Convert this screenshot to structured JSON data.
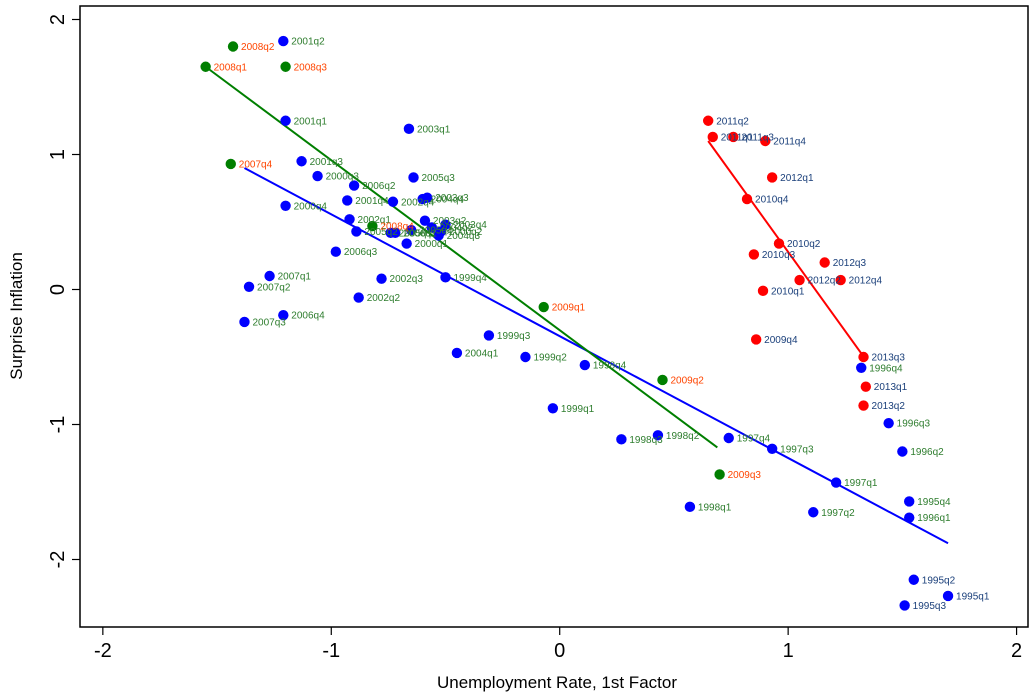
{
  "chart_data": {
    "type": "scatter",
    "title": "",
    "xlabel": "Unemployment Rate, 1st Factor",
    "ylabel": "Surprise Inflation",
    "xlim": [
      -2.1,
      2.05
    ],
    "ylim": [
      -2.5,
      2.1
    ],
    "xticks": [
      -2,
      -1,
      0,
      1,
      2
    ],
    "yticks": [
      -2,
      -1,
      0,
      1,
      2
    ],
    "grid": false,
    "legend": "none",
    "colors": {
      "blue_marker": "#0000ff",
      "blue_label": "#1a3f7a",
      "green_marker": "#007f00",
      "green_label": "#2e7d2e",
      "orange_label": "#ff4500",
      "red_marker": "#ff0000"
    },
    "series": [
      {
        "group": "blue",
        "marker_color": "#0000ff",
        "points": [
          {
            "label": "1995q1",
            "x": 1.7,
            "y": -2.27,
            "label_color": "#1a3f7a"
          },
          {
            "label": "1995q2",
            "x": 1.55,
            "y": -2.15,
            "label_color": "#1a3f7a"
          },
          {
            "label": "1995q3",
            "x": 1.51,
            "y": -2.34,
            "label_color": "#1a3f7a"
          },
          {
            "label": "1995q4",
            "x": 1.53,
            "y": -1.57,
            "label_color": "#2e7d2e"
          },
          {
            "label": "1996q1",
            "x": 1.53,
            "y": -1.69,
            "label_color": "#2e7d2e"
          },
          {
            "label": "1996q2",
            "x": 1.5,
            "y": -1.2,
            "label_color": "#2e7d2e"
          },
          {
            "label": "1996q3",
            "x": 1.44,
            "y": -0.99,
            "label_color": "#2e7d2e"
          },
          {
            "label": "1996q4",
            "x": 1.32,
            "y": -0.58,
            "label_color": "#2e7d2e"
          },
          {
            "label": "1997q1",
            "x": 1.21,
            "y": -1.43,
            "label_color": "#2e7d2e"
          },
          {
            "label": "1997q2",
            "x": 1.11,
            "y": -1.65,
            "label_color": "#2e7d2e"
          },
          {
            "label": "1997q3",
            "x": 0.93,
            "y": -1.18,
            "label_color": "#2e7d2e"
          },
          {
            "label": "1997q4",
            "x": 0.74,
            "y": -1.1,
            "label_color": "#2e7d2e"
          },
          {
            "label": "1998q1",
            "x": 0.57,
            "y": -1.61,
            "label_color": "#2e7d2e"
          },
          {
            "label": "1998q2",
            "x": 0.43,
            "y": -1.08,
            "label_color": "#2e7d2e"
          },
          {
            "label": "1998q3",
            "x": 0.27,
            "y": -1.11,
            "label_color": "#2e7d2e"
          },
          {
            "label": "1998q4",
            "x": 0.11,
            "y": -0.56,
            "label_color": "#2e7d2e"
          },
          {
            "label": "1999q1",
            "x": -0.03,
            "y": -0.88,
            "label_color": "#2e7d2e"
          },
          {
            "label": "1999q2",
            "x": -0.15,
            "y": -0.5,
            "label_color": "#2e7d2e"
          },
          {
            "label": "1999q3",
            "x": -0.31,
            "y": -0.34,
            "label_color": "#2e7d2e"
          },
          {
            "label": "1999q4",
            "x": -0.5,
            "y": 0.09,
            "label_color": "#2e7d2e"
          },
          {
            "label": "2000q1",
            "x": -0.67,
            "y": 0.34,
            "label_color": "#2e7d2e"
          },
          {
            "label": "2000q2",
            "x": -0.52,
            "y": 0.43,
            "label_color": "#2e7d2e"
          },
          {
            "label": "2000q3",
            "x": -1.06,
            "y": 0.84,
            "label_color": "#2e7d2e"
          },
          {
            "label": "2000q4",
            "x": -1.2,
            "y": 0.62,
            "label_color": "#2e7d2e"
          },
          {
            "label": "2001q1",
            "x": -1.2,
            "y": 1.25,
            "label_color": "#2e7d2e"
          },
          {
            "label": "2001q2",
            "x": -1.21,
            "y": 1.84,
            "label_color": "#2e7d2e"
          },
          {
            "label": "2001q3",
            "x": -1.13,
            "y": 0.95,
            "label_color": "#2e7d2e"
          },
          {
            "label": "2001q4",
            "x": -0.93,
            "y": 0.66,
            "label_color": "#2e7d2e"
          },
          {
            "label": "2002q1",
            "x": -0.92,
            "y": 0.52,
            "label_color": "#2e7d2e"
          },
          {
            "label": "2002q2",
            "x": -0.88,
            "y": -0.06,
            "label_color": "#2e7d2e"
          },
          {
            "label": "2002q3",
            "x": -0.78,
            "y": 0.08,
            "label_color": "#2e7d2e"
          },
          {
            "label": "2002q4",
            "x": -0.73,
            "y": 0.65,
            "label_color": "#2e7d2e"
          },
          {
            "label": "2003q1",
            "x": -0.66,
            "y": 1.19,
            "label_color": "#2e7d2e"
          },
          {
            "label": "2003q2",
            "x": -0.59,
            "y": 0.51,
            "label_color": "#2e7d2e"
          },
          {
            "label": "2003q3",
            "x": -0.58,
            "y": 0.68,
            "label_color": "#2e7d2e"
          },
          {
            "label": "2003q4",
            "x": -0.5,
            "y": 0.48,
            "label_color": "#2e7d2e"
          },
          {
            "label": "2004q1",
            "x": -0.45,
            "y": -0.47,
            "label_color": "#2e7d2e"
          },
          {
            "label": "2004q2",
            "x": -0.56,
            "y": 0.46,
            "label_color": "#2e7d2e"
          },
          {
            "label": "2004q3",
            "x": -0.53,
            "y": 0.4,
            "label_color": "#2e7d2e"
          },
          {
            "label": "2004q4",
            "x": -0.6,
            "y": 0.67,
            "label_color": "#2e7d2e"
          },
          {
            "label": "2005q1",
            "x": -0.74,
            "y": 0.42,
            "label_color": "#2e7d2e"
          },
          {
            "label": "2005q2",
            "x": -0.89,
            "y": 0.43,
            "label_color": "#2e7d2e"
          },
          {
            "label": "2005q3",
            "x": -0.64,
            "y": 0.83,
            "label_color": "#2e7d2e"
          },
          {
            "label": "2005q4",
            "x": -0.65,
            "y": 0.44,
            "label_color": "#2e7d2e"
          },
          {
            "label": "2006q1",
            "x": -0.72,
            "y": 0.42,
            "label_color": "#2e7d2e"
          },
          {
            "label": "2006q2",
            "x": -0.9,
            "y": 0.77,
            "label_color": "#2e7d2e"
          },
          {
            "label": "2006q3",
            "x": -0.98,
            "y": 0.28,
            "label_color": "#2e7d2e"
          },
          {
            "label": "2006q4",
            "x": -1.21,
            "y": -0.19,
            "label_color": "#2e7d2e"
          },
          {
            "label": "2007q1",
            "x": -1.27,
            "y": 0.1,
            "label_color": "#2e7d2e"
          },
          {
            "label": "2007q2",
            "x": -1.36,
            "y": 0.02,
            "label_color": "#2e7d2e"
          },
          {
            "label": "2007q3",
            "x": -1.38,
            "y": -0.24,
            "label_color": "#2e7d2e"
          }
        ]
      },
      {
        "group": "green",
        "marker_color": "#007f00",
        "points": [
          {
            "label": "2007q4",
            "x": -1.44,
            "y": 0.93,
            "label_color": "#ff4500"
          },
          {
            "label": "2008q1",
            "x": -1.55,
            "y": 1.65,
            "label_color": "#ff4500"
          },
          {
            "label": "2008q2",
            "x": -1.43,
            "y": 1.8,
            "label_color": "#ff4500"
          },
          {
            "label": "2008q3",
            "x": -1.2,
            "y": 1.65,
            "label_color": "#ff4500"
          },
          {
            "label": "2008q4",
            "x": -0.82,
            "y": 0.47,
            "label_color": "#ff4500"
          },
          {
            "label": "2009q1",
            "x": -0.07,
            "y": -0.13,
            "label_color": "#ff4500"
          },
          {
            "label": "2009q2",
            "x": 0.45,
            "y": -0.67,
            "label_color": "#ff4500"
          },
          {
            "label": "2009q3",
            "x": 0.7,
            "y": -1.37,
            "label_color": "#ff4500"
          }
        ]
      },
      {
        "group": "red",
        "marker_color": "#ff0000",
        "points": [
          {
            "label": "2009q4",
            "x": 0.86,
            "y": -0.37,
            "label_color": "#1a3f7a"
          },
          {
            "label": "2010q1",
            "x": 0.89,
            "y": -0.01,
            "label_color": "#1a3f7a"
          },
          {
            "label": "2010q2",
            "x": 0.96,
            "y": 0.34,
            "label_color": "#1a3f7a"
          },
          {
            "label": "2010q3",
            "x": 0.85,
            "y": 0.26,
            "label_color": "#1a3f7a"
          },
          {
            "label": "2010q4",
            "x": 0.82,
            "y": 0.67,
            "label_color": "#1a3f7a"
          },
          {
            "label": "2011q1",
            "x": 0.67,
            "y": 1.13,
            "label_color": "#1a3f7a"
          },
          {
            "label": "2011q2",
            "x": 0.65,
            "y": 1.25,
            "label_color": "#1a3f7a"
          },
          {
            "label": "2011q3",
            "x": 0.76,
            "y": 1.13,
            "label_color": "#1a3f7a"
          },
          {
            "label": "2011q4",
            "x": 0.9,
            "y": 1.1,
            "label_color": "#1a3f7a"
          },
          {
            "label": "2012q1",
            "x": 0.93,
            "y": 0.83,
            "label_color": "#1a3f7a"
          },
          {
            "label": "2012q2",
            "x": 1.05,
            "y": 0.07,
            "label_color": "#1a3f7a"
          },
          {
            "label": "2012q3",
            "x": 1.16,
            "y": 0.2,
            "label_color": "#1a3f7a"
          },
          {
            "label": "2012q4",
            "x": 1.23,
            "y": 0.07,
            "label_color": "#1a3f7a"
          },
          {
            "label": "2013q1",
            "x": 1.34,
            "y": -0.72,
            "label_color": "#1a3f7a"
          },
          {
            "label": "2013q2",
            "x": 1.33,
            "y": -0.86,
            "label_color": "#1a3f7a"
          },
          {
            "label": "2013q3",
            "x": 1.33,
            "y": -0.5,
            "label_color": "#1a3f7a"
          }
        ]
      }
    ],
    "fit_lines": [
      {
        "group": "blue",
        "color": "#0000ff",
        "x": [
          -1.38,
          1.7
        ],
        "y": [
          0.9,
          -1.88
        ]
      },
      {
        "group": "green",
        "color": "#007f00",
        "x": [
          -1.55,
          0.69
        ],
        "y": [
          1.65,
          -1.17
        ]
      },
      {
        "group": "red",
        "color": "#ff0000",
        "x": [
          0.65,
          1.34
        ],
        "y": [
          1.1,
          -0.52
        ]
      }
    ]
  }
}
